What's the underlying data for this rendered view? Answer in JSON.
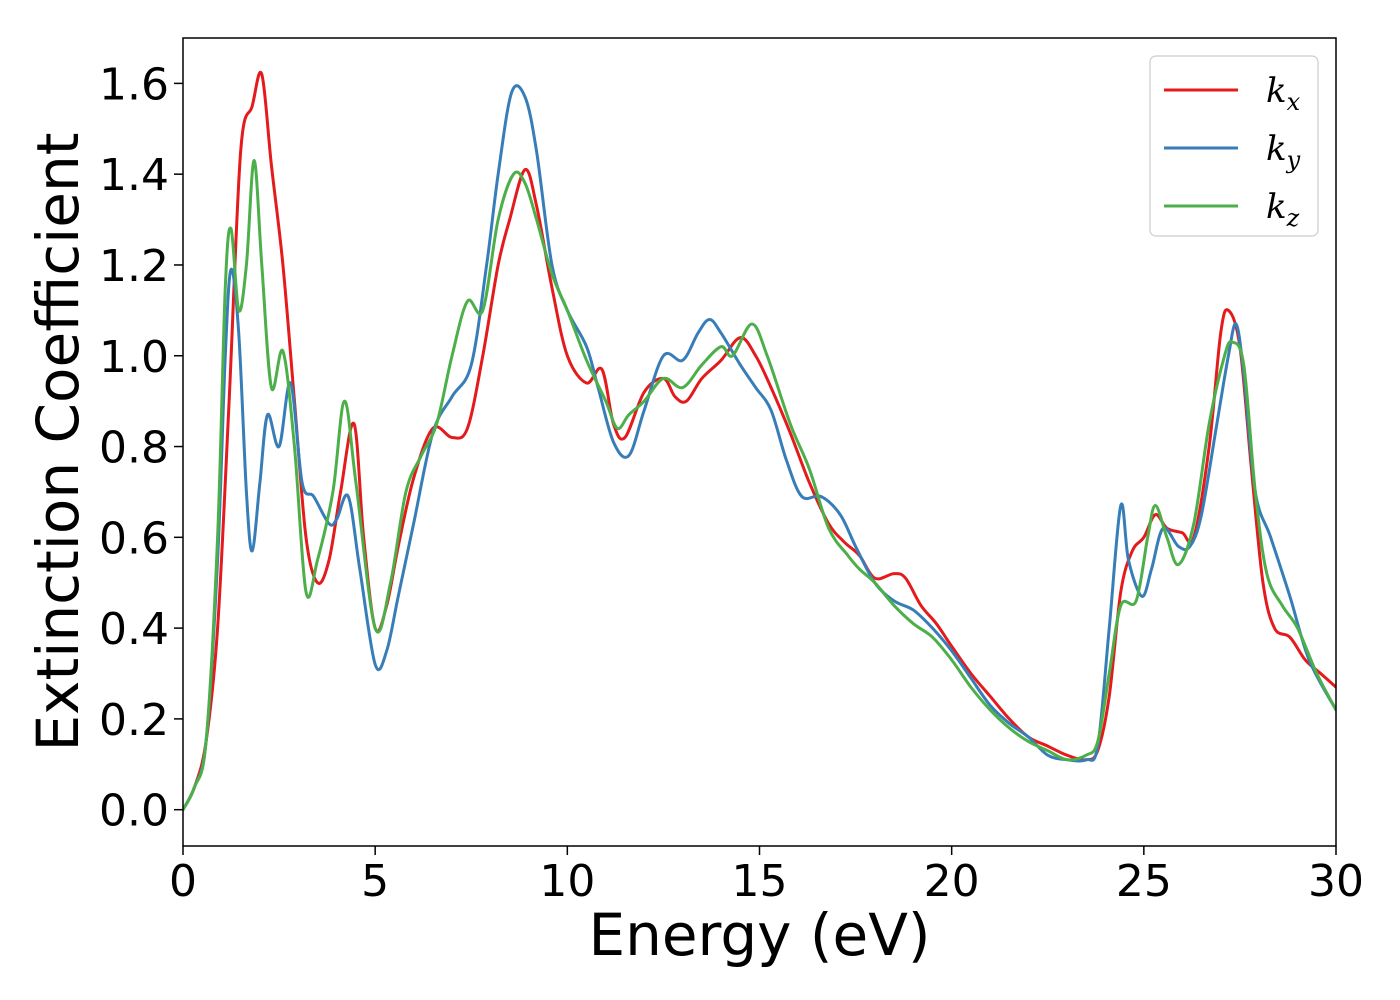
{
  "chart_data": {
    "type": "line",
    "title": "",
    "xlabel": "Energy (eV)",
    "ylabel": "Extinction Coefficient",
    "xlim": [
      0,
      30
    ],
    "ylim": [
      -0.08,
      1.7
    ],
    "x_ticks": [
      0,
      5,
      10,
      15,
      20,
      25,
      30
    ],
    "x_tick_labels": [
      "0",
      "5",
      "10",
      "15",
      "20",
      "25",
      "30"
    ],
    "y_ticks": [
      0.0,
      0.2,
      0.4,
      0.6,
      0.8,
      1.0,
      1.2,
      1.4,
      1.6
    ],
    "y_tick_labels": [
      "0.0",
      "0.2",
      "0.4",
      "0.6",
      "0.8",
      "1.0",
      "1.2",
      "1.4",
      "1.6"
    ],
    "grid": false,
    "legend": {
      "position": "top-right"
    },
    "series": [
      {
        "name": "k",
        "subscript": "x",
        "color": "#e41a1c",
        "points": [
          [
            0,
            0
          ],
          [
            0.3,
            0.05
          ],
          [
            0.6,
            0.15
          ],
          [
            0.9,
            0.4
          ],
          [
            1.2,
            0.9
          ],
          [
            1.5,
            1.45
          ],
          [
            1.8,
            1.55
          ],
          [
            2.05,
            1.62
          ],
          [
            2.3,
            1.42
          ],
          [
            2.6,
            1.2
          ],
          [
            2.9,
            0.9
          ],
          [
            3.2,
            0.6
          ],
          [
            3.5,
            0.5
          ],
          [
            3.8,
            0.55
          ],
          [
            4.1,
            0.7
          ],
          [
            4.45,
            0.85
          ],
          [
            4.7,
            0.6
          ],
          [
            5.0,
            0.4
          ],
          [
            5.3,
            0.45
          ],
          [
            5.6,
            0.58
          ],
          [
            6.0,
            0.73
          ],
          [
            6.5,
            0.84
          ],
          [
            7.0,
            0.82
          ],
          [
            7.4,
            0.84
          ],
          [
            7.8,
            1.0
          ],
          [
            8.2,
            1.2
          ],
          [
            8.5,
            1.3
          ],
          [
            8.9,
            1.41
          ],
          [
            9.2,
            1.33
          ],
          [
            9.6,
            1.15
          ],
          [
            10.0,
            1.0
          ],
          [
            10.5,
            0.94
          ],
          [
            10.9,
            0.97
          ],
          [
            11.2,
            0.85
          ],
          [
            11.5,
            0.82
          ],
          [
            12.0,
            0.92
          ],
          [
            12.5,
            0.95
          ],
          [
            12.8,
            0.91
          ],
          [
            13.1,
            0.9
          ],
          [
            13.5,
            0.95
          ],
          [
            14.0,
            0.99
          ],
          [
            14.5,
            1.04
          ],
          [
            14.9,
            1.0
          ],
          [
            15.3,
            0.93
          ],
          [
            15.8,
            0.83
          ],
          [
            16.3,
            0.72
          ],
          [
            16.8,
            0.63
          ],
          [
            17.2,
            0.59
          ],
          [
            17.6,
            0.56
          ],
          [
            18.0,
            0.51
          ],
          [
            18.5,
            0.52
          ],
          [
            18.8,
            0.51
          ],
          [
            19.2,
            0.45
          ],
          [
            19.6,
            0.41
          ],
          [
            20.0,
            0.36
          ],
          [
            20.5,
            0.3
          ],
          [
            21.0,
            0.25
          ],
          [
            21.5,
            0.2
          ],
          [
            22.0,
            0.16
          ],
          [
            22.5,
            0.14
          ],
          [
            23.0,
            0.12
          ],
          [
            23.5,
            0.11
          ],
          [
            23.8,
            0.13
          ],
          [
            24.1,
            0.25
          ],
          [
            24.4,
            0.48
          ],
          [
            24.7,
            0.57
          ],
          [
            25.0,
            0.6
          ],
          [
            25.3,
            0.65
          ],
          [
            25.6,
            0.62
          ],
          [
            26.0,
            0.61
          ],
          [
            26.3,
            0.6
          ],
          [
            26.7,
            0.8
          ],
          [
            27.0,
            1.05
          ],
          [
            27.2,
            1.1
          ],
          [
            27.5,
            1.02
          ],
          [
            27.8,
            0.75
          ],
          [
            28.1,
            0.5
          ],
          [
            28.4,
            0.4
          ],
          [
            28.8,
            0.38
          ],
          [
            29.2,
            0.33
          ],
          [
            29.6,
            0.3
          ],
          [
            30.0,
            0.27
          ]
        ]
      },
      {
        "name": "k",
        "subscript": "y",
        "color": "#377eb8",
        "points": [
          [
            0,
            0
          ],
          [
            0.3,
            0.05
          ],
          [
            0.6,
            0.15
          ],
          [
            0.9,
            0.55
          ],
          [
            1.1,
            1.0
          ],
          [
            1.25,
            1.19
          ],
          [
            1.45,
            1.05
          ],
          [
            1.65,
            0.7
          ],
          [
            1.8,
            0.57
          ],
          [
            2.0,
            0.72
          ],
          [
            2.2,
            0.87
          ],
          [
            2.5,
            0.8
          ],
          [
            2.8,
            0.94
          ],
          [
            3.1,
            0.72
          ],
          [
            3.4,
            0.69
          ],
          [
            3.8,
            0.63
          ],
          [
            4.0,
            0.64
          ],
          [
            4.3,
            0.69
          ],
          [
            4.6,
            0.53
          ],
          [
            5.0,
            0.32
          ],
          [
            5.3,
            0.35
          ],
          [
            5.6,
            0.47
          ],
          [
            6.0,
            0.63
          ],
          [
            6.5,
            0.83
          ],
          [
            7.0,
            0.91
          ],
          [
            7.5,
            0.98
          ],
          [
            7.9,
            1.2
          ],
          [
            8.2,
            1.4
          ],
          [
            8.55,
            1.58
          ],
          [
            8.9,
            1.57
          ],
          [
            9.2,
            1.45
          ],
          [
            9.6,
            1.2
          ],
          [
            10.0,
            1.1
          ],
          [
            10.5,
            1.02
          ],
          [
            10.8,
            0.93
          ],
          [
            11.2,
            0.81
          ],
          [
            11.6,
            0.78
          ],
          [
            12.0,
            0.88
          ],
          [
            12.5,
            1.0
          ],
          [
            13.0,
            0.99
          ],
          [
            13.4,
            1.05
          ],
          [
            13.7,
            1.08
          ],
          [
            14.0,
            1.05
          ],
          [
            14.5,
            0.98
          ],
          [
            14.9,
            0.93
          ],
          [
            15.3,
            0.88
          ],
          [
            15.7,
            0.77
          ],
          [
            16.1,
            0.69
          ],
          [
            16.6,
            0.69
          ],
          [
            17.1,
            0.65
          ],
          [
            17.5,
            0.58
          ],
          [
            18.0,
            0.5
          ],
          [
            18.5,
            0.46
          ],
          [
            19.0,
            0.44
          ],
          [
            19.5,
            0.4
          ],
          [
            20.0,
            0.35
          ],
          [
            20.5,
            0.29
          ],
          [
            21.0,
            0.23
          ],
          [
            21.5,
            0.19
          ],
          [
            22.0,
            0.16
          ],
          [
            22.5,
            0.12
          ],
          [
            23.0,
            0.11
          ],
          [
            23.5,
            0.11
          ],
          [
            23.8,
            0.14
          ],
          [
            24.1,
            0.4
          ],
          [
            24.4,
            0.67
          ],
          [
            24.6,
            0.55
          ],
          [
            24.95,
            0.47
          ],
          [
            25.2,
            0.53
          ],
          [
            25.5,
            0.62
          ],
          [
            25.9,
            0.58
          ],
          [
            26.2,
            0.58
          ],
          [
            26.5,
            0.65
          ],
          [
            26.9,
            0.85
          ],
          [
            27.2,
            1.0
          ],
          [
            27.4,
            1.07
          ],
          [
            27.6,
            0.96
          ],
          [
            27.9,
            0.7
          ],
          [
            28.3,
            0.6
          ],
          [
            28.8,
            0.47
          ],
          [
            29.3,
            0.33
          ],
          [
            30.0,
            0.22
          ]
        ]
      },
      {
        "name": "k",
        "subscript": "z",
        "color": "#4daf4a",
        "points": [
          [
            0,
            0
          ],
          [
            0.3,
            0.05
          ],
          [
            0.6,
            0.15
          ],
          [
            0.9,
            0.6
          ],
          [
            1.1,
            1.15
          ],
          [
            1.25,
            1.28
          ],
          [
            1.45,
            1.1
          ],
          [
            1.65,
            1.2
          ],
          [
            1.85,
            1.43
          ],
          [
            2.05,
            1.2
          ],
          [
            2.3,
            0.93
          ],
          [
            2.6,
            1.01
          ],
          [
            2.9,
            0.8
          ],
          [
            3.2,
            0.48
          ],
          [
            3.5,
            0.55
          ],
          [
            3.9,
            0.7
          ],
          [
            4.2,
            0.9
          ],
          [
            4.5,
            0.72
          ],
          [
            5.0,
            0.4
          ],
          [
            5.4,
            0.5
          ],
          [
            5.8,
            0.7
          ],
          [
            6.2,
            0.78
          ],
          [
            6.6,
            0.85
          ],
          [
            7.0,
            1.0
          ],
          [
            7.4,
            1.12
          ],
          [
            7.8,
            1.1
          ],
          [
            8.2,
            1.3
          ],
          [
            8.6,
            1.4
          ],
          [
            8.9,
            1.38
          ],
          [
            9.2,
            1.3
          ],
          [
            9.6,
            1.18
          ],
          [
            10.0,
            1.1
          ],
          [
            10.5,
            0.99
          ],
          [
            11.0,
            0.9
          ],
          [
            11.3,
            0.84
          ],
          [
            11.6,
            0.87
          ],
          [
            12.0,
            0.9
          ],
          [
            12.5,
            0.95
          ],
          [
            13.0,
            0.93
          ],
          [
            13.5,
            0.98
          ],
          [
            14.0,
            1.02
          ],
          [
            14.3,
            1.0
          ],
          [
            14.8,
            1.07
          ],
          [
            15.2,
            1.0
          ],
          [
            15.8,
            0.85
          ],
          [
            16.3,
            0.75
          ],
          [
            16.8,
            0.62
          ],
          [
            17.3,
            0.56
          ],
          [
            17.6,
            0.53
          ],
          [
            18.0,
            0.5
          ],
          [
            18.5,
            0.45
          ],
          [
            19.0,
            0.41
          ],
          [
            19.5,
            0.38
          ],
          [
            20.0,
            0.33
          ],
          [
            20.5,
            0.27
          ],
          [
            21.0,
            0.22
          ],
          [
            21.5,
            0.18
          ],
          [
            22.0,
            0.15
          ],
          [
            22.5,
            0.13
          ],
          [
            23.0,
            0.11
          ],
          [
            23.5,
            0.12
          ],
          [
            23.8,
            0.15
          ],
          [
            24.1,
            0.3
          ],
          [
            24.4,
            0.45
          ],
          [
            24.8,
            0.46
          ],
          [
            25.1,
            0.6
          ],
          [
            25.3,
            0.67
          ],
          [
            25.6,
            0.6
          ],
          [
            25.9,
            0.54
          ],
          [
            26.3,
            0.63
          ],
          [
            26.7,
            0.85
          ],
          [
            27.1,
            1.0
          ],
          [
            27.3,
            1.03
          ],
          [
            27.6,
            0.98
          ],
          [
            27.9,
            0.7
          ],
          [
            28.2,
            0.52
          ],
          [
            28.6,
            0.45
          ],
          [
            29.0,
            0.4
          ],
          [
            29.5,
            0.3
          ],
          [
            30.0,
            0.22
          ]
        ]
      }
    ]
  }
}
